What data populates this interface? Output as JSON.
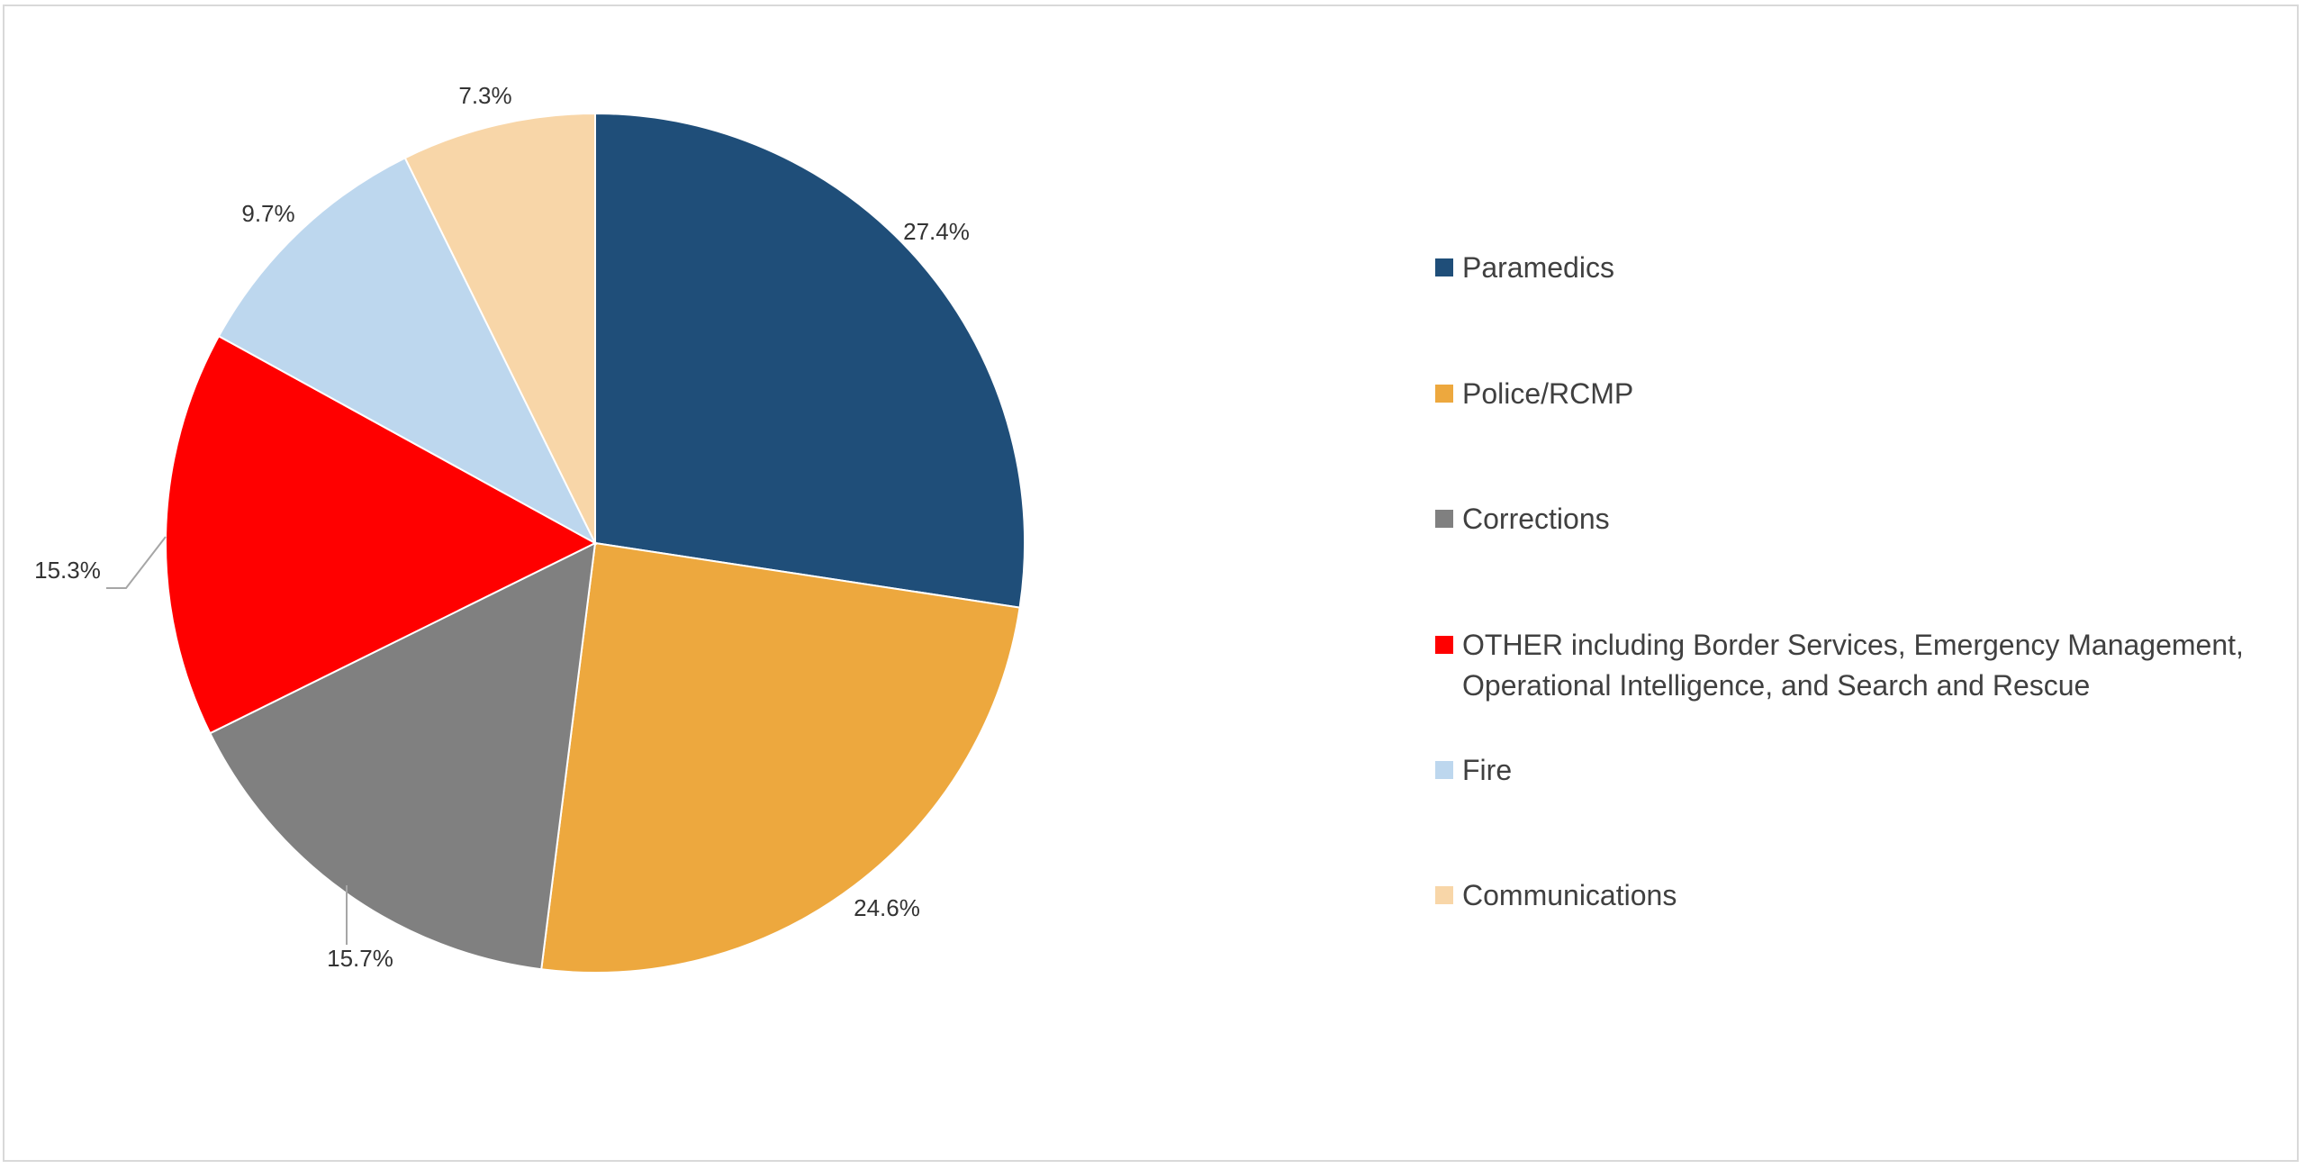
{
  "chart_data": {
    "type": "pie",
    "title": "",
    "legend_position": "right",
    "slices": [
      {
        "label": "Paramedics",
        "value": 27.4,
        "display": "27.4%",
        "color": "#1f4e79"
      },
      {
        "label": "Police/RCMP",
        "value": 24.6,
        "display": "24.6%",
        "color": "#eda83e"
      },
      {
        "label": "Corrections",
        "value": 15.7,
        "display": "15.7%",
        "color": "#808080"
      },
      {
        "label": "OTHER including Border Services, Emergency Management, Operational Intelligence, and Search and Rescue",
        "value": 15.3,
        "display": "15.3%",
        "color": "#ff0000"
      },
      {
        "label": "Fire",
        "value": 9.7,
        "display": "9.7%",
        "color": "#bdd7ee"
      },
      {
        "label": "Communications",
        "value": 7.3,
        "display": "7.3%",
        "color": "#f8d6a8"
      }
    ]
  }
}
